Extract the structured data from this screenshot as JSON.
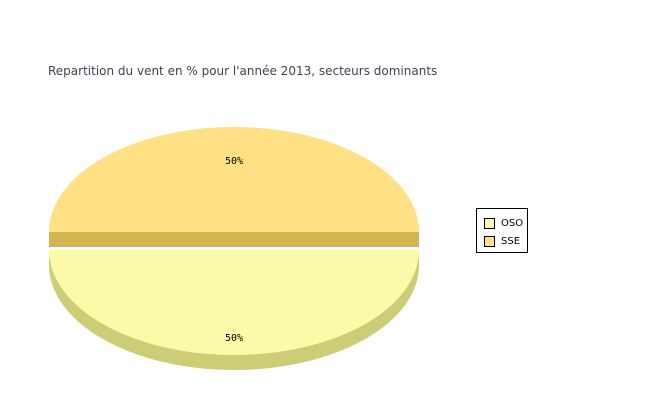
{
  "chart_data": {
    "type": "pie",
    "title": "Repartition du vent en % pour l'année 2013, secteurs dominants",
    "categories": [
      "OSO",
      "SSE"
    ],
    "values": [
      50,
      50
    ],
    "data_labels": [
      "50%",
      "50%"
    ],
    "colors": [
      "#FAFAA8",
      "#FFE084"
    ],
    "side_colors": [
      "#CDCD78",
      "#D2B450"
    ],
    "style": "3d-exploded",
    "legend_position": "right"
  }
}
